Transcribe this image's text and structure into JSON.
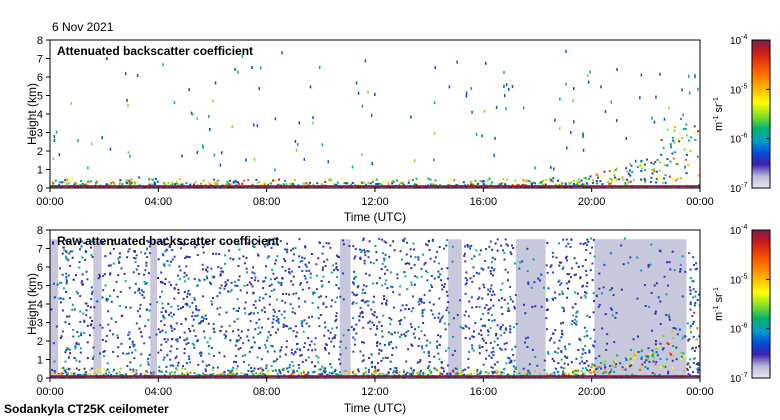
{
  "figure": {
    "date": "6 Nov 2021",
    "footer": "Sodankyla CT25K ceilometer"
  },
  "colorbar": {
    "unit": "m",
    "unit_exp": "-1",
    "unit2": " sr",
    "unit2_exp": "-1",
    "ticks": [
      {
        "base": "10",
        "exp": "-4"
      },
      {
        "base": "10",
        "exp": "-5"
      },
      {
        "base": "10",
        "exp": "-6"
      },
      {
        "base": "10",
        "exp": "-7"
      }
    ],
    "colors": [
      "#7a1e50",
      "#c81a1a",
      "#ff5a00",
      "#ffb000",
      "#ffff00",
      "#7cdc2a",
      "#00b070",
      "#00a0c8",
      "#0050d8",
      "#3a20b0",
      "#b8b8d8",
      "#e8e8f4"
    ]
  },
  "chart_data": [
    {
      "type": "heatmap",
      "title": "Attenuated backscatter coefficient",
      "xlabel": "Time (UTC)",
      "ylabel": "Height (km)",
      "xticks": [
        "00:00",
        "04:00",
        "08:00",
        "12:00",
        "16:00",
        "20:00",
        "00:00"
      ],
      "yticks": [
        "0",
        "1",
        "2",
        "3",
        "4",
        "5",
        "6",
        "7",
        "8"
      ],
      "xlim_hours": [
        0,
        24
      ],
      "ylim_km": [
        0,
        8
      ],
      "color_scale": "log",
      "clim": [
        1e-07,
        0.0001
      ]
    },
    {
      "type": "heatmap",
      "title": "Raw attenuated backscatter coefficient",
      "xlabel": "Time (UTC)",
      "ylabel": "Height (km)",
      "xticks": [
        "00:00",
        "04:00",
        "08:00",
        "12:00",
        "16:00",
        "20:00",
        "00:00"
      ],
      "yticks": [
        "0",
        "1",
        "2",
        "3",
        "4",
        "5",
        "6",
        "7",
        "8"
      ],
      "xlim_hours": [
        0,
        24
      ],
      "ylim_km": [
        0,
        8
      ],
      "color_scale": "log",
      "clim": [
        1e-07,
        0.0001
      ]
    }
  ]
}
